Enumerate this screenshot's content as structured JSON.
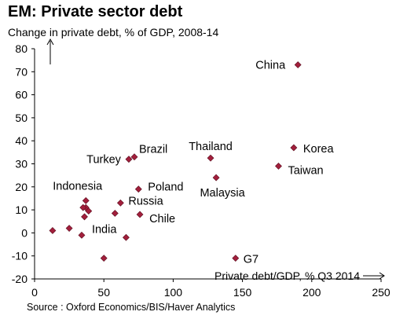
{
  "chart_data": {
    "type": "scatter",
    "title": "EM: Private sector debt",
    "ylabel": "Change in private debt, % of GDP, 2008-14",
    "xlabel": "Private debt/GDP, % Q3 2014",
    "xlim": [
      0,
      250
    ],
    "ylim": [
      -20,
      80
    ],
    "x_ticks": [
      "0",
      "50",
      "100",
      "150",
      "200",
      "250"
    ],
    "y_ticks": [
      "-20",
      "-10",
      "0",
      "10",
      "20",
      "30",
      "40",
      "50",
      "60",
      "70",
      "80"
    ],
    "grid": false,
    "marker_color": "#a21f3c",
    "points": [
      {
        "label": "China",
        "x": 190,
        "y": 73
      },
      {
        "label": "Korea",
        "x": 187,
        "y": 37
      },
      {
        "label": "Taiwan",
        "x": 176,
        "y": 29
      },
      {
        "label": "Thailand",
        "x": 127,
        "y": 32.5
      },
      {
        "label": "Malaysia",
        "x": 131,
        "y": 24
      },
      {
        "label": "Brazil",
        "x": 72,
        "y": 33
      },
      {
        "label": "Turkey",
        "x": 68,
        "y": 32
      },
      {
        "label": "Poland",
        "x": 75,
        "y": 19
      },
      {
        "label": "Russia",
        "x": 62,
        "y": 13
      },
      {
        "label": "Chile",
        "x": 76,
        "y": 8
      },
      {
        "label": "Indonesia",
        "x": 37,
        "y": 14
      },
      {
        "label": "India",
        "x": 66,
        "y": -2
      },
      {
        "label": "G7",
        "x": 145,
        "y": -11
      },
      {
        "label": "",
        "x": 37,
        "y": 11
      },
      {
        "label": "",
        "x": 35,
        "y": 11
      },
      {
        "label": "",
        "x": 39,
        "y": 9.5
      },
      {
        "label": "",
        "x": 58,
        "y": 8.5
      },
      {
        "label": "",
        "x": 36,
        "y": 7
      },
      {
        "label": "",
        "x": 13,
        "y": 1
      },
      {
        "label": "",
        "x": 25,
        "y": 2
      },
      {
        "label": "",
        "x": 34,
        "y": -1
      },
      {
        "label": "",
        "x": 50,
        "y": -11
      }
    ]
  },
  "source": "Source : Oxford Economics/BIS/Haver Analytics"
}
